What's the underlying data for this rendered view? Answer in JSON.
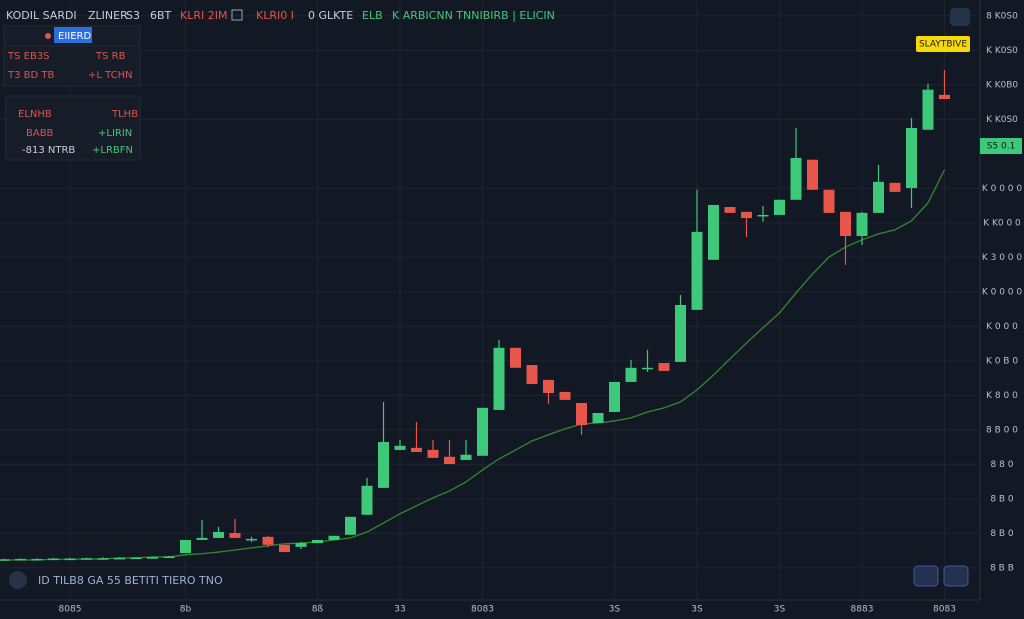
{
  "header": {
    "items": [
      "KODIL SARDI",
      "ZLINER",
      "S3",
      "6BT",
      "KLRI 2IM",
      "KLRI0 I",
      "0 GLKTE",
      "ELB",
      "K ARBICNN TNNIBIRB | ELICIN"
    ]
  },
  "panel_top": {
    "rows": [
      [
        "TS EB3S",
        "EIIERD",
        "TS RB"
      ],
      [
        "T3 BD TB",
        "+L TCHN"
      ]
    ]
  },
  "panel_stats": {
    "rows": [
      [
        "ELNHB",
        "TLHB"
      ],
      [
        "BABB",
        "+LIRIN"
      ],
      [
        "-813 NTRB",
        "+LRBFN"
      ]
    ]
  },
  "footer": {
    "text": "ID TILB8 GA 55 BETITI TIERO TNO"
  },
  "price_tag": "S5 0.1",
  "alert_tag": "SLAYTBIVE",
  "chart_data": {
    "type": "candlestick",
    "categories": [
      null,
      null,
      null,
      null,
      "8085",
      null,
      null,
      null,
      null,
      null,
      null,
      "8b",
      null,
      null,
      null,
      null,
      null,
      null,
      null,
      "8ß",
      null,
      null,
      null,
      null,
      "33",
      null,
      null,
      null,
      null,
      "8083",
      null,
      null,
      null,
      null,
      null,
      null,
      null,
      "3S",
      null,
      null,
      null,
      null,
      "3S",
      null,
      null,
      null,
      null,
      "3S",
      null,
      null,
      null,
      null,
      "8883",
      null,
      null,
      null,
      null,
      "8083"
    ],
    "open": [
      0.24,
      0.25,
      0.26,
      0.26,
      0.27,
      0.27,
      0.28,
      0.28,
      0.29,
      0.3,
      0.31,
      0.43,
      0.81,
      0.87,
      1.01,
      0.81,
      0.9,
      0.67,
      0.61,
      0.72,
      0.81,
      0.96,
      1.54,
      2.32,
      3.42,
      3.48,
      3.42,
      3.22,
      3.13,
      3.25,
      4.58,
      6.38,
      5.88,
      5.45,
      5.1,
      4.78,
      4.2,
      4.52,
      5.39,
      5.8,
      5.94,
      5.97,
      7.48,
      8.93,
      10.46,
      10.32,
      10.23,
      10.23,
      10.67,
      11.83,
      10.96,
      10.32,
      9.62,
      10.29,
      11.16,
      11.01,
      12.7,
      13.71
    ],
    "high": [
      0.27,
      0.28,
      0.28,
      0.29,
      0.29,
      0.3,
      0.31,
      0.31,
      0.32,
      0.33,
      0.35,
      0.81,
      1.39,
      1.19,
      1.42,
      0.9,
      0.93,
      0.67,
      0.75,
      0.81,
      0.93,
      1.48,
      2.61,
      4.81,
      3.71,
      4.23,
      3.71,
      3.71,
      3.71,
      4.64,
      6.61,
      6.38,
      5.88,
      5.45,
      5.1,
      4.78,
      4.49,
      5.39,
      6.03,
      6.32,
      5.94,
      7.91,
      10.96,
      10.52,
      10.46,
      10.32,
      10.49,
      10.67,
      12.75,
      11.83,
      10.96,
      10.32,
      10.32,
      11.68,
      11.16,
      13.04,
      14.03,
      14.43
    ],
    "low": [
      0.22,
      0.23,
      0.24,
      0.24,
      0.25,
      0.25,
      0.26,
      0.26,
      0.27,
      0.28,
      0.29,
      0.43,
      0.81,
      0.87,
      0.87,
      0.75,
      0.61,
      0.46,
      0.55,
      0.72,
      0.81,
      0.96,
      1.54,
      2.32,
      3.42,
      3.36,
      3.19,
      3.01,
      3.13,
      3.25,
      4.58,
      5.8,
      5.33,
      4.75,
      4.87,
      3.86,
      4.2,
      4.52,
      5.39,
      5.68,
      5.71,
      5.97,
      7.48,
      8.93,
      10.29,
      9.59,
      10.03,
      10.23,
      10.67,
      10.96,
      10.29,
      8.78,
      9.36,
      10.29,
      10.9,
      10.43,
      12.7,
      13.59
    ],
    "close": [
      0.25,
      0.26,
      0.26,
      0.27,
      0.27,
      0.28,
      0.28,
      0.29,
      0.3,
      0.31,
      0.33,
      0.81,
      0.87,
      1.04,
      0.87,
      0.84,
      0.67,
      0.46,
      0.72,
      0.81,
      0.93,
      1.48,
      2.38,
      3.65,
      3.54,
      3.36,
      3.19,
      3.01,
      3.28,
      4.64,
      6.38,
      5.8,
      5.33,
      5.07,
      4.87,
      4.14,
      4.49,
      5.39,
      5.8,
      5.8,
      5.71,
      7.62,
      9.74,
      10.52,
      10.29,
      10.14,
      10.23,
      10.67,
      11.88,
      10.96,
      10.29,
      9.62,
      10.29,
      11.19,
      10.9,
      12.75,
      13.86,
      13.59
    ],
    "ma": [
      0.23,
      0.23,
      0.23,
      0.25,
      0.25,
      0.26,
      0.26,
      0.29,
      0.29,
      0.32,
      0.32,
      0.38,
      0.41,
      0.46,
      0.52,
      0.58,
      0.64,
      0.7,
      0.72,
      0.75,
      0.81,
      0.87,
      1.04,
      1.3,
      1.57,
      1.8,
      2.03,
      2.23,
      2.49,
      2.84,
      3.16,
      3.42,
      3.68,
      3.86,
      4.03,
      4.17,
      4.2,
      4.26,
      4.35,
      4.52,
      4.64,
      4.81,
      5.16,
      5.59,
      6.06,
      6.52,
      6.96,
      7.39,
      7.97,
      8.52,
      9.01,
      9.3,
      9.51,
      9.68,
      9.8,
      10.06,
      10.58,
      11.54
    ],
    "up_color": "#3ec97a",
    "down_color": "#e8554b",
    "ma_color": "#2f8a2f",
    "ylim": [
      -0.93,
      16.46
    ],
    "yticks": [
      {
        "value": 0,
        "label": "8 B B"
      },
      {
        "value": 1,
        "label": "8 B 0"
      },
      {
        "value": 2,
        "label": "8 B 0"
      },
      {
        "value": 3,
        "label": "8 8 0"
      },
      {
        "value": 4,
        "label": "8 B 0 0"
      },
      {
        "value": 5,
        "label": "K 8 0 0"
      },
      {
        "value": 6,
        "label": "K 0 B 0"
      },
      {
        "value": 7,
        "label": "K 0 0 0"
      },
      {
        "value": 8,
        "label": "K 0 0 0 0"
      },
      {
        "value": 9,
        "label": "K 3 0 0 0"
      },
      {
        "value": 10,
        "label": "K K0 0 0"
      },
      {
        "value": 11,
        "label": "K 0 0 0 0"
      },
      {
        "value": 13,
        "label": "K K0S0"
      },
      {
        "value": 14,
        "label": "K K0B0"
      },
      {
        "value": 15,
        "label": "K K0S0"
      },
      {
        "value": 16,
        "label": "8 K0S0"
      }
    ],
    "grid": true
  }
}
